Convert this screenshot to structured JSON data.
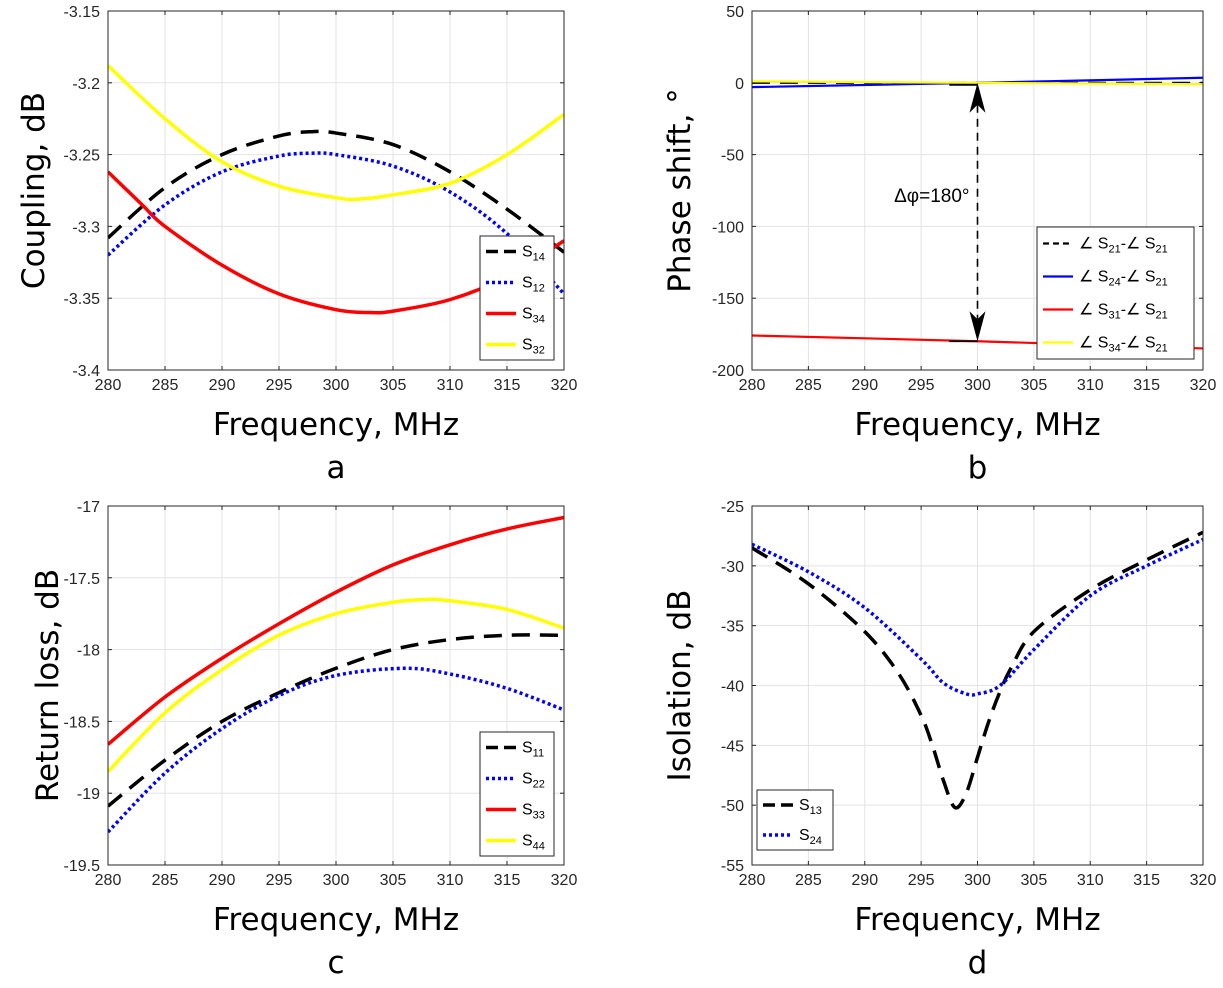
{
  "chart_data": [
    {
      "id": "a",
      "type": "line",
      "panel_label": "a",
      "xlabel": "Frequency, MHz",
      "ylabel": "Coupling, dB",
      "xlim": [
        280,
        320
      ],
      "ylim": [
        -3.4,
        -3.15
      ],
      "xticks": [
        "280",
        "285",
        "290",
        "295",
        "300",
        "305",
        "310",
        "315",
        "320"
      ],
      "yticks": [
        "-3.15",
        "-3.2",
        "-3.25",
        "-3.3",
        "-3.35",
        "-3.4"
      ],
      "grid": true,
      "legend_position": "lower-right",
      "series": [
        {
          "base": "S",
          "sub": "14",
          "color": "#000000",
          "style": "dashed",
          "x": [
            280,
            285,
            290,
            295,
            298,
            300,
            305,
            310,
            315,
            320
          ],
          "y": [
            -3.308,
            -3.273,
            -3.25,
            -3.237,
            -3.234,
            -3.235,
            -3.243,
            -3.262,
            -3.288,
            -3.318
          ]
        },
        {
          "base": "S",
          "sub": "12",
          "color": "#0000ff",
          "style": "dotted",
          "x": [
            280,
            285,
            290,
            295,
            298,
            300,
            305,
            310,
            315,
            320
          ],
          "y": [
            -3.32,
            -3.285,
            -3.262,
            -3.251,
            -3.249,
            -3.25,
            -3.258,
            -3.276,
            -3.305,
            -3.347
          ]
        },
        {
          "base": "S",
          "sub": "34",
          "color": "#ff0000",
          "style": "solid",
          "x": [
            280,
            283,
            285,
            290,
            295,
            300,
            303,
            305,
            310,
            315,
            320
          ],
          "y": [
            -3.262,
            -3.285,
            -3.3,
            -3.327,
            -3.347,
            -3.358,
            -3.36,
            -3.359,
            -3.351,
            -3.335,
            -3.31
          ]
        },
        {
          "base": "S",
          "sub": "32",
          "color": "#ffff00",
          "style": "solid",
          "x": [
            280,
            285,
            290,
            295,
            300,
            302,
            305,
            310,
            315,
            320
          ],
          "y": [
            -3.188,
            -3.225,
            -3.255,
            -3.272,
            -3.28,
            -3.281,
            -3.278,
            -3.27,
            -3.25,
            -3.222
          ]
        }
      ]
    },
    {
      "id": "b",
      "type": "line",
      "panel_label": "b",
      "xlabel": "Frequency, MHz",
      "ylabel": "Phase shift, °",
      "xlim": [
        280,
        320
      ],
      "ylim": [
        -200,
        50
      ],
      "xticks": [
        "280",
        "285",
        "290",
        "295",
        "300",
        "305",
        "310",
        "315",
        "320"
      ],
      "yticks": [
        "50",
        "0",
        "-50",
        "-100",
        "-150",
        "-200"
      ],
      "grid": true,
      "legend_position": "lower-right",
      "annotation": {
        "text": "Δφ=180°",
        "x": 300,
        "y_top": 0,
        "y_bottom": -180
      },
      "series": [
        {
          "parts": [
            "∠ S",
            "21",
            "-∠ S",
            "21"
          ],
          "color": "#000000",
          "style": "dashed",
          "x": [
            280,
            320
          ],
          "y": [
            0,
            0
          ]
        },
        {
          "parts": [
            "∠ S",
            "24",
            "-∠ S",
            "21"
          ],
          "color": "#0000ff",
          "style": "solid",
          "x": [
            280,
            300,
            320
          ],
          "y": [
            -3,
            0,
            3.5
          ]
        },
        {
          "parts": [
            "∠ S",
            "31",
            "-∠ S",
            "21"
          ],
          "color": "#ff0000",
          "style": "solid",
          "x": [
            280,
            300,
            320
          ],
          "y": [
            -176,
            -180,
            -185
          ]
        },
        {
          "parts": [
            "∠ S",
            "34",
            "-∠ S",
            "21"
          ],
          "color": "#ffff00",
          "style": "solid",
          "x": [
            280,
            320
          ],
          "y": [
            1,
            -1
          ]
        }
      ]
    },
    {
      "id": "c",
      "type": "line",
      "panel_label": "c",
      "xlabel": "Frequency, MHz",
      "ylabel": "Return loss, dB",
      "xlim": [
        280,
        320
      ],
      "ylim": [
        -19.5,
        -17
      ],
      "xticks": [
        "280",
        "285",
        "290",
        "295",
        "300",
        "305",
        "310",
        "315",
        "320"
      ],
      "yticks": [
        "-17",
        "-17.5",
        "-18",
        "-18.5",
        "-19",
        "-19.5"
      ],
      "grid": true,
      "legend_position": "lower-right",
      "series": [
        {
          "base": "S",
          "sub": "11",
          "color": "#000000",
          "style": "dashed",
          "x": [
            280,
            285,
            290,
            295,
            300,
            305,
            310,
            315,
            320
          ],
          "y": [
            -19.09,
            -18.77,
            -18.5,
            -18.3,
            -18.13,
            -18.0,
            -17.93,
            -17.9,
            -17.9
          ]
        },
        {
          "base": "S",
          "sub": "22",
          "color": "#0000ff",
          "style": "dotted",
          "x": [
            280,
            285,
            290,
            295,
            300,
            306,
            310,
            315,
            320
          ],
          "y": [
            -19.27,
            -18.86,
            -18.55,
            -18.32,
            -18.18,
            -18.13,
            -18.17,
            -18.27,
            -18.42
          ]
        },
        {
          "base": "S",
          "sub": "33",
          "color": "#ff0000",
          "style": "solid",
          "x": [
            280,
            285,
            290,
            295,
            300,
            305,
            310,
            315,
            320
          ],
          "y": [
            -18.66,
            -18.33,
            -18.06,
            -17.82,
            -17.6,
            -17.41,
            -17.27,
            -17.16,
            -17.08
          ]
        },
        {
          "base": "S",
          "sub": "44",
          "color": "#ffff00",
          "style": "solid",
          "x": [
            280,
            285,
            290,
            295,
            300,
            305,
            308,
            310,
            315,
            320
          ],
          "y": [
            -18.85,
            -18.44,
            -18.14,
            -17.9,
            -17.75,
            -17.67,
            -17.65,
            -17.66,
            -17.72,
            -17.85
          ]
        }
      ]
    },
    {
      "id": "d",
      "type": "line",
      "panel_label": "d",
      "xlabel": "Frequency, MHz",
      "ylabel": "Isolation, dB",
      "xlim": [
        280,
        320
      ],
      "ylim": [
        -55,
        -25
      ],
      "xticks": [
        "280",
        "285",
        "290",
        "295",
        "300",
        "305",
        "310",
        "315",
        "320"
      ],
      "yticks": [
        "-25",
        "-30",
        "-35",
        "-40",
        "-45",
        "-50",
        "-55"
      ],
      "grid": true,
      "legend_position": "lower-left",
      "series": [
        {
          "base": "S",
          "sub": "13",
          "color": "#000000",
          "style": "dashed",
          "x": [
            280,
            285,
            290,
            293,
            295,
            296,
            297,
            298,
            299,
            300,
            301,
            302,
            303,
            305,
            310,
            315,
            320
          ],
          "y": [
            -28.5,
            -31.5,
            -35.5,
            -39,
            -42.5,
            -45,
            -48,
            -50.2,
            -49,
            -46,
            -43,
            -40.5,
            -38.5,
            -35.5,
            -32,
            -29.5,
            -27.2
          ]
        },
        {
          "base": "S",
          "sub": "24",
          "color": "#0000ff",
          "style": "dotted",
          "x": [
            280,
            285,
            290,
            295,
            297,
            299,
            300,
            302,
            305,
            310,
            315,
            320
          ],
          "y": [
            -28.2,
            -30.5,
            -33.5,
            -37.8,
            -39.8,
            -40.7,
            -40.7,
            -40,
            -37,
            -32.5,
            -30,
            -27.8
          ]
        }
      ]
    }
  ]
}
